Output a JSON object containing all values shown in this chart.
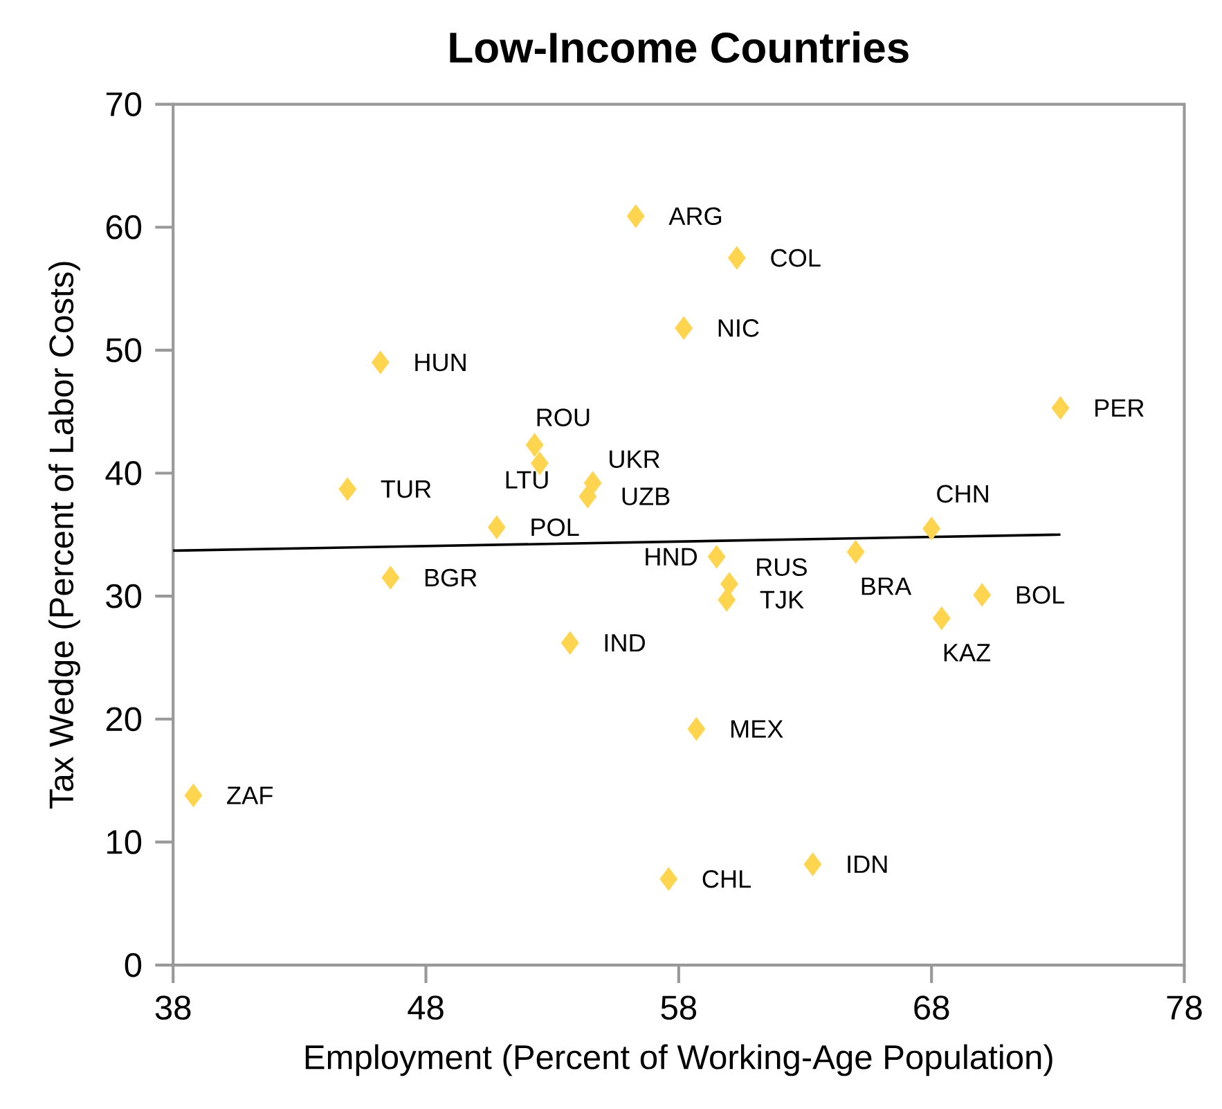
{
  "chart_data": {
    "type": "scatter",
    "title": "Low-Income Countries",
    "xlabel": "Employment (Percent of Working-Age Population)",
    "ylabel": "Tax Wedge (Percent of Labor Costs)",
    "xlim": [
      38,
      78
    ],
    "ylim": [
      0,
      70
    ],
    "xticks": [
      38,
      48,
      58,
      68,
      78
    ],
    "yticks": [
      0,
      10,
      20,
      30,
      40,
      50,
      60,
      70
    ],
    "series": [
      {
        "marker": "diamond",
        "color": "#ffd54f",
        "x": [
          56.3,
          60.3,
          58.2,
          46.2,
          73.1,
          52.3,
          52.5,
          54.6,
          54.4,
          44.9,
          50.8,
          68.0,
          59.5,
          65.0,
          60.0,
          59.9,
          46.6,
          70.0,
          68.4,
          53.7,
          58.7,
          38.8,
          57.6,
          63.3
        ],
        "values": [
          60.9,
          57.5,
          51.8,
          49.0,
          45.3,
          42.3,
          40.8,
          39.2,
          38.1,
          38.7,
          35.6,
          35.5,
          33.2,
          33.6,
          31.0,
          29.7,
          31.5,
          30.1,
          28.2,
          26.2,
          19.2,
          13.8,
          7.0,
          8.2
        ]
      },
      {
        "type": "line",
        "marker": "none",
        "color": "#000000",
        "x": [
          38,
          73.1
        ],
        "values": [
          33.7,
          35.0
        ]
      }
    ],
    "annotations": [
      {
        "text": "ARG",
        "x": 56.3,
        "y": 60.9
      },
      {
        "text": "COL",
        "x": 60.3,
        "y": 57.5
      },
      {
        "text": "NIC",
        "x": 58.2,
        "y": 51.8
      },
      {
        "text": "HUN",
        "x": 46.2,
        "y": 49.0
      },
      {
        "text": "PER",
        "x": 73.1,
        "y": 45.3
      },
      {
        "text": "ROU",
        "x": 52.3,
        "y": 42.3
      },
      {
        "text": "LTU",
        "x": 52.5,
        "y": 40.8
      },
      {
        "text": "UKR",
        "x": 54.6,
        "y": 39.2
      },
      {
        "text": "UZB",
        "x": 54.4,
        "y": 38.1
      },
      {
        "text": "TUR",
        "x": 44.9,
        "y": 38.7
      },
      {
        "text": "POL",
        "x": 50.8,
        "y": 35.6
      },
      {
        "text": "CHN",
        "x": 68.0,
        "y": 35.5
      },
      {
        "text": "HND",
        "x": 59.5,
        "y": 33.2
      },
      {
        "text": "BRA",
        "x": 65.0,
        "y": 33.6
      },
      {
        "text": "RUS",
        "x": 60.0,
        "y": 31.0
      },
      {
        "text": "TJK",
        "x": 59.9,
        "y": 29.7
      },
      {
        "text": "BGR",
        "x": 46.6,
        "y": 31.5
      },
      {
        "text": "BOL",
        "x": 70.0,
        "y": 30.1
      },
      {
        "text": "KAZ",
        "x": 68.4,
        "y": 28.2
      },
      {
        "text": "IND",
        "x": 53.7,
        "y": 26.2
      },
      {
        "text": "MEX",
        "x": 58.7,
        "y": 19.2
      },
      {
        "text": "ZAF",
        "x": 38.8,
        "y": 13.8
      },
      {
        "text": "CHL",
        "x": 57.6,
        "y": 7.0
      },
      {
        "text": "IDN",
        "x": 63.3,
        "y": 8.2
      }
    ]
  }
}
